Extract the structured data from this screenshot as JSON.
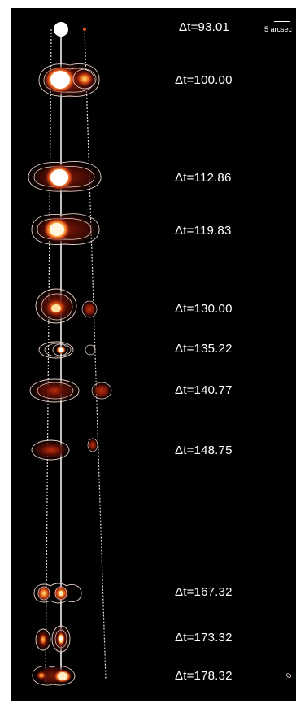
{
  "epochs": [
    {
      "label": "Δt=93.01"
    },
    {
      "label": "Δt=100.00"
    },
    {
      "label": "Δt=112.86"
    },
    {
      "label": "Δt=119.83"
    },
    {
      "label": "Δt=130.00"
    },
    {
      "label": "Δt=135.22"
    },
    {
      "label": "Δt=140.77"
    },
    {
      "label": "Δt=148.75"
    },
    {
      "label": "Δt=167.32"
    },
    {
      "label": "Δt=173.32"
    },
    {
      "label": "Δt=178.32"
    }
  ],
  "scalebar": {
    "label": "5 arcsec"
  },
  "colors": {
    "background": "#000000",
    "core": "#ffffff",
    "glow_inner": "#ffcf6a",
    "glow_mid": "#e0561a",
    "glow_outer": "#7a1a08",
    "contour": "#e8d0c8"
  }
}
